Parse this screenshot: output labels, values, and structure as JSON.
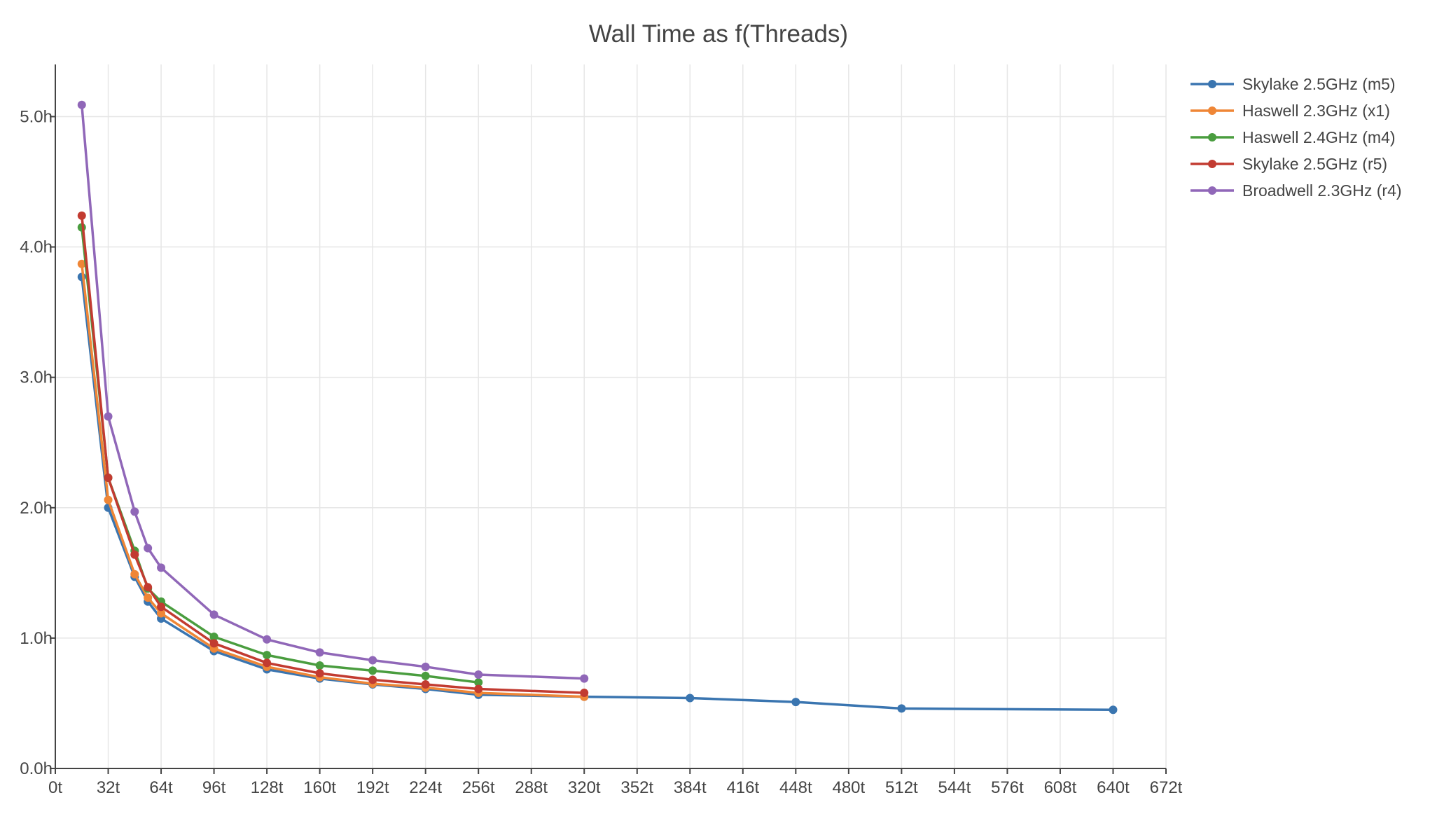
{
  "chart_data": {
    "type": "line",
    "title": "Wall Time as f(Threads)",
    "xlabel": "",
    "ylabel": "",
    "xlim": [
      0,
      672
    ],
    "ylim": [
      0,
      5.4
    ],
    "x_ticks": [
      0,
      32,
      64,
      96,
      128,
      160,
      192,
      224,
      256,
      288,
      320,
      352,
      384,
      416,
      448,
      480,
      512,
      544,
      576,
      608,
      640,
      672
    ],
    "x_tick_labels": [
      "0t",
      "32t",
      "64t",
      "96t",
      "128t",
      "160t",
      "192t",
      "224t",
      "256t",
      "288t",
      "320t",
      "352t",
      "384t",
      "416t",
      "448t",
      "480t",
      "512t",
      "544t",
      "576t",
      "608t",
      "640t",
      "672t"
    ],
    "y_ticks": [
      0,
      1,
      2,
      3,
      4,
      5
    ],
    "y_tick_labels": [
      "0.0h",
      "1.0h",
      "2.0h",
      "3.0h",
      "4.0h",
      "5.0h"
    ],
    "grid": true,
    "legend_position": "top-right",
    "series": [
      {
        "name": "Skylake 2.5GHz (m5)",
        "color": "#3a75b0",
        "points": [
          [
            16,
            3.77
          ],
          [
            32,
            2.0
          ],
          [
            48,
            1.47
          ],
          [
            56,
            1.28
          ],
          [
            64,
            1.15
          ],
          [
            96,
            0.9
          ],
          [
            128,
            0.76
          ],
          [
            160,
            0.69
          ],
          [
            192,
            0.645
          ],
          [
            224,
            0.61
          ],
          [
            256,
            0.565
          ],
          [
            320,
            0.55
          ],
          [
            384,
            0.54
          ],
          [
            448,
            0.51
          ],
          [
            512,
            0.46
          ],
          [
            640,
            0.45
          ]
        ]
      },
      {
        "name": "Haswell 2.3GHz (x1)",
        "color": "#ef8636",
        "points": [
          [
            16,
            3.87
          ],
          [
            32,
            2.06
          ],
          [
            48,
            1.49
          ],
          [
            56,
            1.31
          ],
          [
            64,
            1.19
          ],
          [
            96,
            0.92
          ],
          [
            128,
            0.78
          ],
          [
            160,
            0.7
          ],
          [
            192,
            0.65
          ],
          [
            224,
            0.62
          ],
          [
            256,
            0.58
          ],
          [
            320,
            0.55
          ]
        ]
      },
      {
        "name": "Haswell 2.4GHz (m4)",
        "color": "#4a9d3f",
        "points": [
          [
            16,
            4.15
          ],
          [
            32,
            2.23
          ],
          [
            48,
            1.67
          ],
          [
            56,
            1.38
          ],
          [
            64,
            1.28
          ],
          [
            96,
            1.01
          ],
          [
            128,
            0.87
          ],
          [
            160,
            0.79
          ],
          [
            192,
            0.75
          ],
          [
            224,
            0.71
          ],
          [
            256,
            0.66
          ]
        ]
      },
      {
        "name": "Skylake 2.5GHz (r5)",
        "color": "#c23b31",
        "points": [
          [
            16,
            4.24
          ],
          [
            32,
            2.23
          ],
          [
            48,
            1.64
          ],
          [
            56,
            1.39
          ],
          [
            64,
            1.24
          ],
          [
            96,
            0.96
          ],
          [
            128,
            0.81
          ],
          [
            160,
            0.73
          ],
          [
            192,
            0.68
          ],
          [
            224,
            0.645
          ],
          [
            256,
            0.61
          ],
          [
            320,
            0.58
          ]
        ]
      },
      {
        "name": "Broadwell 2.3GHz (r4)",
        "color": "#9067b8",
        "points": [
          [
            16,
            5.09
          ],
          [
            32,
            2.7
          ],
          [
            48,
            1.97
          ],
          [
            56,
            1.69
          ],
          [
            64,
            1.54
          ],
          [
            96,
            1.18
          ],
          [
            128,
            0.99
          ],
          [
            160,
            0.89
          ],
          [
            192,
            0.83
          ],
          [
            224,
            0.78
          ],
          [
            256,
            0.72
          ],
          [
            320,
            0.69
          ]
        ]
      }
    ]
  }
}
